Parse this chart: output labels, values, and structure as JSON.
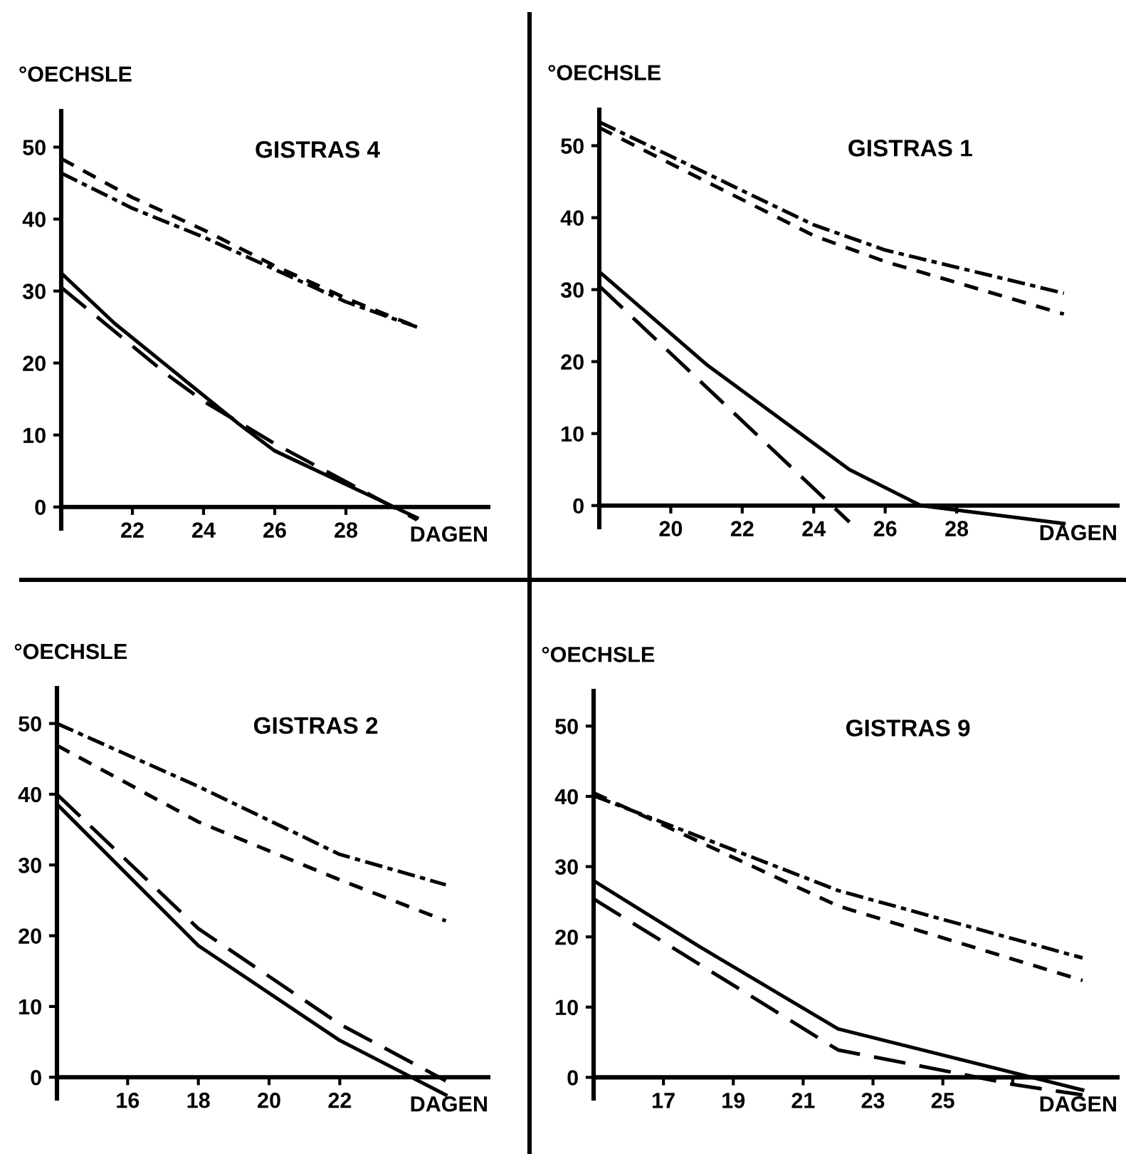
{
  "chart_data": [
    {
      "type": "line",
      "title": "GISTRAS 4",
      "xlabel": "DAGEN",
      "ylabel": "°OECHSLE",
      "xlim": [
        20,
        32
      ],
      "ylim": [
        -3,
        55
      ],
      "xticks": [
        {
          "value": 20,
          "label": null
        },
        22,
        24,
        26,
        28
      ],
      "yticks": [
        0,
        10,
        20,
        30,
        40,
        50
      ],
      "grid": false,
      "marker": "none",
      "series": [
        {
          "color": "#000000",
          "line_style": "solid",
          "x": [
            20,
            21.5,
            23,
            25,
            26,
            30
          ],
          "values": [
            32.5,
            25.5,
            19.5,
            11.5,
            7.8,
            -1.5
          ]
        },
        {
          "color": "#000000",
          "line_style": "longdash",
          "x": [
            20,
            23,
            24,
            26,
            30
          ],
          "values": [
            30.5,
            18.3,
            14.7,
            8.8,
            -1.8
          ]
        },
        {
          "color": "#000000",
          "line_style": "dashed",
          "x": [
            20,
            22,
            24,
            26,
            28,
            30
          ],
          "values": [
            48.4,
            43,
            38.5,
            33.5,
            29,
            25
          ]
        },
        {
          "color": "#000000",
          "line_style": "dashdot",
          "x": [
            20,
            22,
            24,
            26,
            28,
            30
          ],
          "values": [
            46.4,
            41.5,
            37.5,
            33,
            28.5,
            25
          ]
        }
      ]
    },
    {
      "type": "line",
      "title": "GISTRAS 1",
      "xlabel": "DAGEN",
      "ylabel": "°OECHSLE",
      "xlim": [
        18,
        32.5
      ],
      "ylim": [
        -3,
        55
      ],
      "xticks": [
        {
          "value": 18,
          "label": null
        },
        20,
        22,
        24,
        26,
        28
      ],
      "yticks": [
        0,
        10,
        20,
        30,
        40,
        50
      ],
      "grid": false,
      "marker": "none",
      "series": [
        {
          "color": "#000000",
          "line_style": "solid",
          "x": [
            18,
            21,
            25,
            27,
            31
          ],
          "values": [
            32.5,
            19.6,
            5,
            0,
            -2.5
          ]
        },
        {
          "color": "#000000",
          "line_style": "longdash",
          "x": [
            18,
            25
          ],
          "values": [
            30.5,
            -2.3
          ]
        },
        {
          "color": "#000000",
          "line_style": "dashed",
          "x": [
            18,
            24,
            26,
            31
          ],
          "values": [
            52.5,
            37.5,
            33.9,
            26.6
          ]
        },
        {
          "color": "#000000",
          "line_style": "dashdot",
          "x": [
            18,
            24,
            26,
            31
          ],
          "values": [
            53.3,
            39,
            35.5,
            29.5
          ]
        }
      ]
    },
    {
      "type": "line",
      "title": "GISTRAS 2",
      "xlabel": "DAGEN",
      "ylabel": "°OECHSLE",
      "xlim": [
        14,
        26.2
      ],
      "ylim": [
        -3,
        55
      ],
      "xticks": [
        {
          "value": 14,
          "label": null
        },
        16,
        18,
        20,
        22
      ],
      "yticks": [
        0,
        10,
        20,
        30,
        40,
        50
      ],
      "grid": false,
      "marker": "none",
      "series": [
        {
          "color": "#000000",
          "line_style": "solid",
          "x": [
            14,
            18,
            22,
            25
          ],
          "values": [
            38.6,
            18.6,
            5.2,
            -2.5
          ]
        },
        {
          "color": "#000000",
          "line_style": "longdash",
          "x": [
            14,
            18,
            22,
            25
          ],
          "values": [
            40,
            21,
            7.5,
            -0.5
          ]
        },
        {
          "color": "#000000",
          "line_style": "dashed",
          "x": [
            14,
            18,
            22,
            25
          ],
          "values": [
            46.9,
            36.1,
            27.9,
            22.1
          ]
        },
        {
          "color": "#000000",
          "line_style": "dashdot",
          "x": [
            14,
            18,
            22,
            25
          ],
          "values": [
            50,
            41.1,
            31.5,
            27.2
          ]
        }
      ]
    },
    {
      "type": "line",
      "title": "GISTRAS 9",
      "xlabel": "DAGEN",
      "ylabel": "°OECHSLE",
      "xlim": [
        15,
        30
      ],
      "ylim": [
        -3,
        55
      ],
      "xticks": [
        {
          "value": 15,
          "label": null
        },
        17,
        19,
        21,
        23,
        25,
        {
          "value": 27,
          "label": null
        }
      ],
      "yticks": [
        0,
        10,
        20,
        30,
        40,
        50
      ],
      "grid": false,
      "marker": "none",
      "series": [
        {
          "color": "#000000",
          "line_style": "solid",
          "x": [
            15,
            18,
            22,
            29
          ],
          "values": [
            28,
            18.7,
            6.9,
            -1.8
          ]
        },
        {
          "color": "#000000",
          "line_style": "longdash",
          "x": [
            15,
            22,
            25.5,
            27,
            29
          ],
          "values": [
            25.4,
            3.9,
            0.5,
            -1,
            -2.5
          ]
        },
        {
          "color": "#000000",
          "line_style": "dashed",
          "x": [
            15,
            22,
            29
          ],
          "values": [
            40.5,
            24.4,
            13.8
          ]
        },
        {
          "color": "#000000",
          "line_style": "dashdot",
          "x": [
            15,
            22,
            29
          ],
          "values": [
            40.1,
            26.6,
            17
          ]
        }
      ]
    }
  ]
}
